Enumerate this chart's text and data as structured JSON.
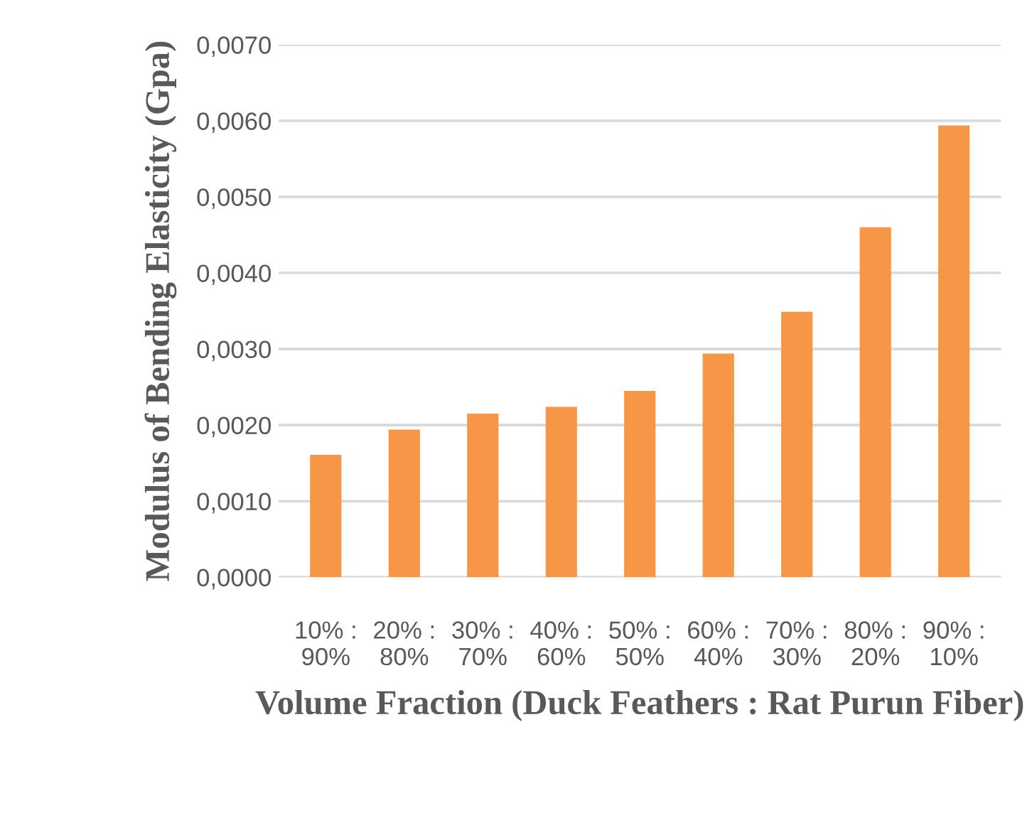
{
  "chart_data": {
    "type": "bar",
    "xlabel": "Volume Fraction (Duck Feathers : Rat Purun Fiber)",
    "ylabel": "Modulus of Bending Elasticity (Gpa)",
    "categories": [
      "10% :\n90%",
      "20% :\n80%",
      "30% :\n70%",
      "40% :\n60%",
      "50% :\n50%",
      "60% :\n40%",
      "70% :\n30%",
      "80% :\n20%",
      "90% :\n10%"
    ],
    "values": [
      0.00161,
      0.00194,
      0.00215,
      0.00224,
      0.00245,
      0.00294,
      0.00349,
      0.0046,
      0.00594
    ],
    "color": "#f79646",
    "ylim": [
      0,
      0.007
    ],
    "yticks": [
      {
        "value": 0,
        "label": "0,0000"
      },
      {
        "value": 0.001,
        "label": "0,0010"
      },
      {
        "value": 0.002,
        "label": "0,0020"
      },
      {
        "value": 0.003,
        "label": "0,0030"
      },
      {
        "value": 0.004,
        "label": "0,0040"
      },
      {
        "value": 0.005,
        "label": "0,0050"
      },
      {
        "value": 0.006,
        "label": "0,0060"
      },
      {
        "value": 0.007,
        "label": "0,0070"
      }
    ],
    "grid": "y"
  }
}
